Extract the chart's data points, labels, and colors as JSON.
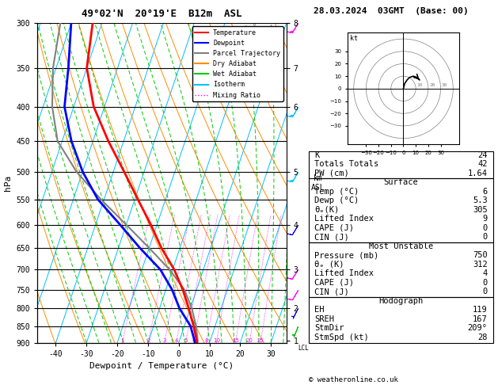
{
  "title": "49°02'N  20°19'E  B12m  ASL",
  "date_title": "28.03.2024  03GMT  (Base: 00)",
  "xlabel": "Dewpoint / Temperature (°C)",
  "ylabel_left": "hPa",
  "pressure_ticks": [
    300,
    350,
    400,
    450,
    500,
    550,
    600,
    650,
    700,
    750,
    800,
    850,
    900
  ],
  "temp_min": -46,
  "temp_max": 35,
  "pres_min": 300,
  "pres_max": 900,
  "skew_factor": 35.0,
  "isotherm_color": "#00bfff",
  "dry_adiabat_color": "#ff8c00",
  "wet_adiabat_color": "#00cc00",
  "mixing_ratio_color": "#ff00ff",
  "temp_color": "#ff0000",
  "dewpoint_color": "#0000ff",
  "parcel_color": "#808080",
  "background_color": "#ffffff",
  "legend_labels": [
    "Temperature",
    "Dewpoint",
    "Parcel Trajectory",
    "Dry Adiabat",
    "Wet Adiabat",
    "Isotherm",
    "Mixing Ratio"
  ],
  "legend_colors": [
    "#ff0000",
    "#0000ff",
    "#808080",
    "#ff8c00",
    "#00cc00",
    "#00bfff",
    "#ff00ff"
  ],
  "legend_styles": [
    "-",
    "-",
    "-",
    "-",
    "-",
    "-",
    ":"
  ],
  "temperature_data": [
    [
      900,
      6.0
    ],
    [
      850,
      3.0
    ],
    [
      800,
      -0.5
    ],
    [
      750,
      -4.5
    ],
    [
      700,
      -9.5
    ],
    [
      650,
      -16.0
    ],
    [
      600,
      -22.0
    ],
    [
      550,
      -29.0
    ],
    [
      500,
      -36.5
    ],
    [
      450,
      -45.0
    ],
    [
      400,
      -53.5
    ],
    [
      350,
      -60.0
    ],
    [
      300,
      -63.0
    ]
  ],
  "dewpoint_data": [
    [
      900,
      5.3
    ],
    [
      850,
      2.0
    ],
    [
      800,
      -3.5
    ],
    [
      750,
      -8.0
    ],
    [
      700,
      -14.0
    ],
    [
      650,
      -23.0
    ],
    [
      600,
      -32.0
    ],
    [
      550,
      -42.0
    ],
    [
      500,
      -50.0
    ],
    [
      450,
      -57.0
    ],
    [
      400,
      -63.0
    ],
    [
      350,
      -66.0
    ],
    [
      300,
      -70.0
    ]
  ],
  "parcel_data": [
    [
      895,
      6.0
    ],
    [
      850,
      3.8
    ],
    [
      800,
      0.5
    ],
    [
      750,
      -4.0
    ],
    [
      700,
      -11.0
    ],
    [
      650,
      -20.0
    ],
    [
      600,
      -30.0
    ],
    [
      550,
      -41.0
    ],
    [
      500,
      -52.0
    ],
    [
      450,
      -61.5
    ],
    [
      400,
      -67.0
    ],
    [
      350,
      -71.0
    ],
    [
      300,
      -73.5
    ]
  ],
  "mixing_ratio_values": [
    1,
    2,
    3,
    4,
    5,
    6,
    8,
    10,
    15,
    20,
    25
  ],
  "altitude_pressures": [
    895,
    800,
    700,
    600,
    500,
    400,
    350,
    300
  ],
  "altitude_kms": [
    1,
    2,
    3,
    4,
    5,
    6,
    7,
    8
  ],
  "lcl_pressure": 895,
  "wind_barb_data": [
    {
      "pressure": 900,
      "u": 1,
      "v": 4,
      "color": "#00bb00"
    },
    {
      "pressure": 850,
      "u": 2,
      "v": 5,
      "color": "#00bb00"
    },
    {
      "pressure": 800,
      "u": 3,
      "v": 6,
      "color": "#0000ff"
    },
    {
      "pressure": 750,
      "u": 4,
      "v": 7,
      "color": "#ff00ff"
    },
    {
      "pressure": 700,
      "u": 5,
      "v": 8,
      "color": "#ff00ff"
    },
    {
      "pressure": 600,
      "u": 6,
      "v": 10,
      "color": "#0000ff"
    },
    {
      "pressure": 500,
      "u": 7,
      "v": 12,
      "color": "#00bfff"
    },
    {
      "pressure": 400,
      "u": 8,
      "v": 14,
      "color": "#00bfff"
    },
    {
      "pressure": 300,
      "u": 9,
      "v": 15,
      "color": "#ff00ff"
    }
  ],
  "hodo_u": [
    0,
    1,
    3,
    5,
    8,
    11,
    13
  ],
  "hodo_v": [
    0,
    4,
    7,
    9,
    10,
    9,
    7
  ],
  "hodo_circles": [
    10,
    20,
    30,
    40
  ],
  "sounding_stats": {
    "K": "24",
    "Totals Totals": "42",
    "PW (cm)": "1.64",
    "Surface_Temp": "6",
    "Surface_Dewp": "5.3",
    "Surface_ThetaE": "305",
    "Surface_LI": "9",
    "Surface_CAPE": "0",
    "Surface_CIN": "0",
    "MU_Pressure": "750",
    "MU_ThetaE": "312",
    "MU_LI": "4",
    "MU_CAPE": "0",
    "MU_CIN": "0",
    "EH": "119",
    "SREH": "167",
    "StmDir": "209°",
    "StmSpd": "28"
  }
}
